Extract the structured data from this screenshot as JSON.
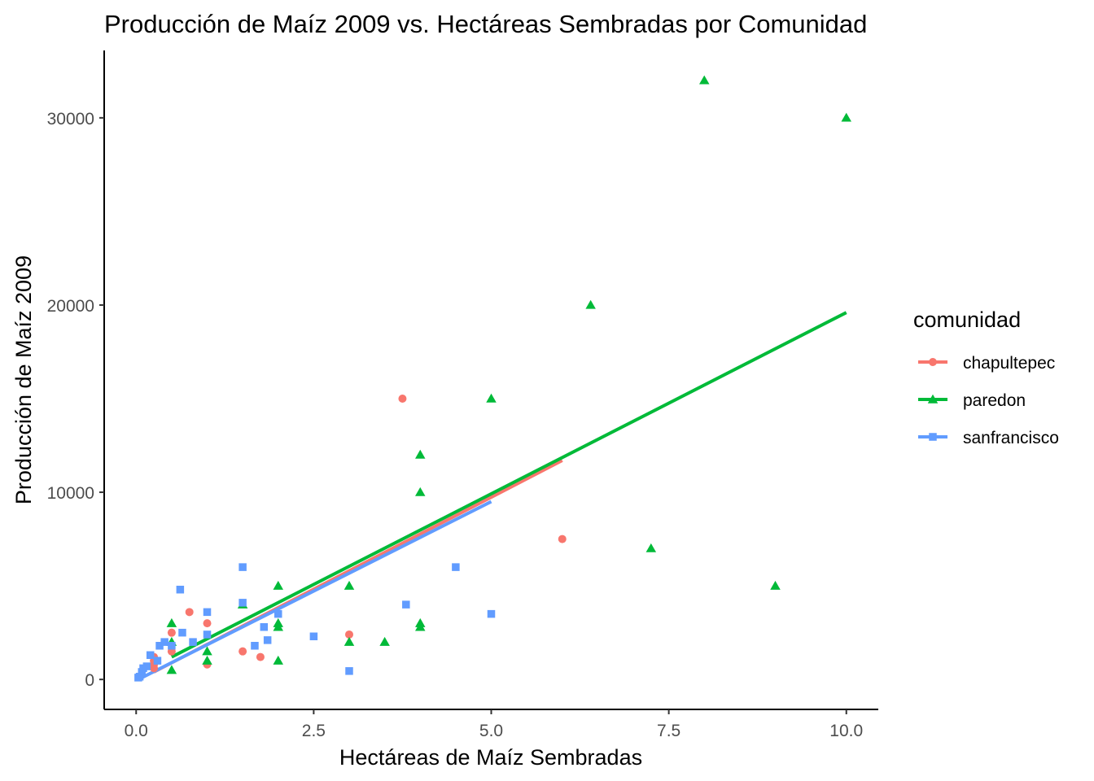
{
  "chart_data": {
    "type": "scatter",
    "title": "Producción de Maíz 2009 vs. Hectáreas Sembradas por Comunidad",
    "xlabel": "Hectáreas de Maíz Sembradas",
    "ylabel": "Producción de Maíz 2009",
    "xlim": [
      -0.45,
      10.45
    ],
    "ylim": [
      -1600,
      33600
    ],
    "x_ticks": [
      0,
      2.5,
      5,
      7.5,
      10
    ],
    "x_tick_labels": [
      "0.0",
      "2.5",
      "5.0",
      "7.5",
      "10.0"
    ],
    "y_ticks": [
      0,
      10000,
      20000,
      30000
    ],
    "y_tick_labels": [
      "0",
      "10000",
      "20000",
      "30000"
    ],
    "grid": false,
    "legend": {
      "title": "comunidad",
      "position": "right"
    },
    "series": [
      {
        "name": "chapultepec",
        "color": "#F8766D",
        "shape": "circle",
        "points": [
          {
            "x": 0.25,
            "y": 600
          },
          {
            "x": 0.25,
            "y": 800
          },
          {
            "x": 0.25,
            "y": 1000
          },
          {
            "x": 0.25,
            "y": 1200
          },
          {
            "x": 0.5,
            "y": 1500
          },
          {
            "x": 0.5,
            "y": 2500
          },
          {
            "x": 0.75,
            "y": 3600
          },
          {
            "x": 1,
            "y": 800
          },
          {
            "x": 1,
            "y": 3000
          },
          {
            "x": 1.5,
            "y": 1500
          },
          {
            "x": 1.75,
            "y": 1200
          },
          {
            "x": 3,
            "y": 2400
          },
          {
            "x": 3.75,
            "y": 15000
          },
          {
            "x": 6,
            "y": 7500
          }
        ],
        "fit": {
          "x": [
            0.25,
            6
          ],
          "y": [
            400,
            11700
          ]
        }
      },
      {
        "name": "paredon",
        "color": "#00BA38",
        "shape": "triangle",
        "points": [
          {
            "x": 0.5,
            "y": 500
          },
          {
            "x": 0.5,
            "y": 2000
          },
          {
            "x": 0.5,
            "y": 3000
          },
          {
            "x": 1,
            "y": 1000
          },
          {
            "x": 1,
            "y": 1500
          },
          {
            "x": 1.5,
            "y": 4000
          },
          {
            "x": 2,
            "y": 1000
          },
          {
            "x": 2,
            "y": 2800
          },
          {
            "x": 2,
            "y": 3000
          },
          {
            "x": 2,
            "y": 5000
          },
          {
            "x": 3,
            "y": 2000
          },
          {
            "x": 3,
            "y": 5000
          },
          {
            "x": 3.5,
            "y": 2000
          },
          {
            "x": 4,
            "y": 2800
          },
          {
            "x": 4,
            "y": 3000
          },
          {
            "x": 4,
            "y": 10000
          },
          {
            "x": 4,
            "y": 12000
          },
          {
            "x": 5,
            "y": 15000
          },
          {
            "x": 6.4,
            "y": 20000
          },
          {
            "x": 7.25,
            "y": 7000
          },
          {
            "x": 8,
            "y": 32000
          },
          {
            "x": 9,
            "y": 5000
          },
          {
            "x": 10,
            "y": 30000
          }
        ],
        "fit": {
          "x": [
            0.5,
            10
          ],
          "y": [
            1200,
            19600
          ]
        }
      },
      {
        "name": "sanfrancisco",
        "color": "#619CFF",
        "shape": "square",
        "points": [
          {
            "x": 0.03,
            "y": 100
          },
          {
            "x": 0.05,
            "y": 150
          },
          {
            "x": 0.08,
            "y": 400
          },
          {
            "x": 0.1,
            "y": 600
          },
          {
            "x": 0.15,
            "y": 700
          },
          {
            "x": 0.2,
            "y": 1300
          },
          {
            "x": 0.3,
            "y": 1000
          },
          {
            "x": 0.33,
            "y": 1800
          },
          {
            "x": 0.4,
            "y": 2000
          },
          {
            "x": 0.5,
            "y": 1800
          },
          {
            "x": 0.62,
            "y": 4800
          },
          {
            "x": 0.65,
            "y": 2500
          },
          {
            "x": 0.8,
            "y": 2000
          },
          {
            "x": 1,
            "y": 2400
          },
          {
            "x": 1,
            "y": 3600
          },
          {
            "x": 1.5,
            "y": 4100
          },
          {
            "x": 1.5,
            "y": 6000
          },
          {
            "x": 1.67,
            "y": 1800
          },
          {
            "x": 1.8,
            "y": 2800
          },
          {
            "x": 1.85,
            "y": 2100
          },
          {
            "x": 2,
            "y": 3500
          },
          {
            "x": 2.5,
            "y": 2300
          },
          {
            "x": 3,
            "y": 450
          },
          {
            "x": 3.8,
            "y": 4000
          },
          {
            "x": 4.5,
            "y": 6000
          },
          {
            "x": 5,
            "y": 3500
          }
        ],
        "fit": {
          "x": [
            0.03,
            5
          ],
          "y": [
            0,
            9500
          ]
        }
      }
    ]
  }
}
